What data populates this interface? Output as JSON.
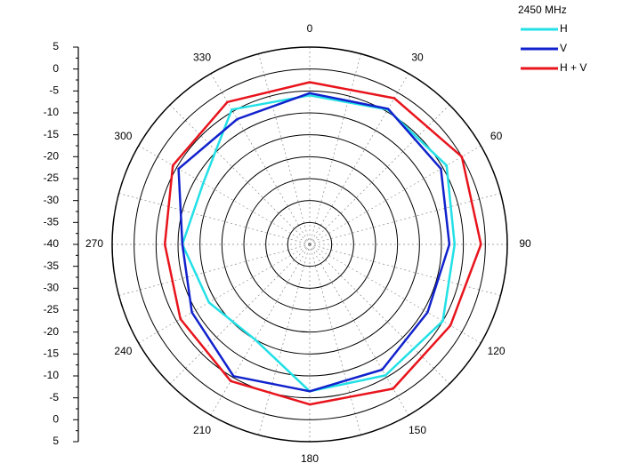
{
  "chart_data": {
    "type": "polar",
    "legend_title": "2450 MHz",
    "theta": [
      0,
      30,
      60,
      90,
      120,
      150,
      180,
      210,
      240,
      270,
      300,
      330
    ],
    "rlim": [
      -40,
      5
    ],
    "rticks": [
      -40,
      -35,
      -30,
      -25,
      -20,
      -15,
      -10,
      -5,
      0,
      5
    ],
    "series": [
      {
        "name": "H",
        "color": "#22e0e6",
        "values": [
          -6,
          -4.5,
          -4,
          -7,
          -5,
          -5.5,
          -6.5,
          -15,
          -13.5,
          -11,
          -12,
          -4.5
        ]
      },
      {
        "name": "V",
        "color": "#1122cc",
        "values": [
          -5.5,
          -4.3,
          -5.5,
          -8.2,
          -9,
          -7,
          -6.5,
          -5.3,
          -9,
          -11,
          -5.5,
          -7
        ]
      },
      {
        "name": "H + V",
        "color": "#e8141c",
        "values": [
          -3,
          -1.5,
          0,
          -1,
          -3,
          -2,
          -3.5,
          -4,
          -6,
          -7,
          -4,
          -2.5
        ]
      }
    ]
  }
}
